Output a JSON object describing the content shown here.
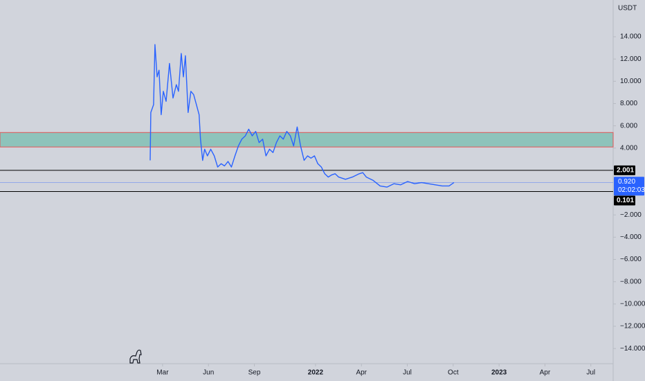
{
  "chart_data": {
    "type": "line",
    "axis_unit": "USDT",
    "x": [
      1.19,
      1.23,
      1.41,
      1.5,
      1.64,
      1.77,
      1.91,
      2.05,
      2.23,
      2.45,
      2.68,
      2.9,
      3.04,
      3.22,
      3.36,
      3.49,
      3.67,
      3.85,
      4.03,
      4.21,
      4.39,
      4.48,
      4.62,
      4.75,
      4.93,
      5.15,
      5.38,
      5.6,
      5.83,
      6.05,
      6.28,
      6.5,
      6.73,
      6.96,
      7.18,
      7.41,
      7.63,
      7.86,
      8.09,
      8.31,
      8.54,
      8.76,
      8.99,
      9.22,
      9.44,
      9.67,
      9.89,
      10.12,
      10.35,
      10.57,
      10.8,
      11.02,
      11.25,
      11.48,
      11.7,
      11.93,
      12.15,
      12.38,
      12.6,
      12.83,
      13.06,
      13.28,
      13.51,
      13.96,
      14.41,
      14.86,
      15.09,
      15.32,
      15.77,
      16.22,
      16.67,
      17.12,
      17.57,
      18.02,
      18.48,
      18.93,
      19.38,
      19.83,
      20.28,
      20.73,
      21.05
    ],
    "series": [
      {
        "color": "#2962ff",
        "values": [
          2.9,
          7.2,
          7.9,
          13.3,
          10.4,
          11,
          7,
          9.1,
          8.2,
          11.6,
          8.5,
          9.7,
          9.1,
          12.5,
          10.4,
          12.3,
          7.2,
          9.1,
          8.8,
          7.9,
          7,
          4.8,
          2.9,
          3.9,
          3.3,
          3.9,
          3.3,
          2.3,
          2.6,
          2.4,
          2.8,
          2.3,
          3.3,
          4.2,
          4.8,
          5.1,
          5.7,
          5.1,
          5.5,
          4.5,
          4.8,
          3.3,
          3.9,
          3.6,
          4.5,
          5.1,
          4.8,
          5.5,
          5.1,
          4.2,
          5.9,
          4.2,
          2.9,
          3.3,
          3.1,
          3.3,
          2.6,
          2.3,
          1.7,
          1.4,
          1.6,
          1.7,
          1.4,
          1.2,
          1.4,
          1.7,
          1.8,
          1.4,
          1.1,
          0.6,
          0.5,
          0.8,
          0.7,
          1.0,
          0.8,
          0.9,
          0.8,
          0.7,
          0.6,
          0.6,
          0.9
        ]
      }
    ],
    "xlim": [
      -8.63,
      31.46
    ],
    "xticks": [
      {
        "value": 2,
        "label": "Mar"
      },
      {
        "value": 5,
        "label": "Jun"
      },
      {
        "value": 8,
        "label": "Sep"
      },
      {
        "value": 12,
        "label": "2022"
      },
      {
        "value": 15,
        "label": "Apr"
      },
      {
        "value": 18,
        "label": "Jul"
      },
      {
        "value": 21,
        "label": "Oct"
      },
      {
        "value": 24,
        "label": "2023"
      },
      {
        "value": 27,
        "label": "Apr"
      },
      {
        "value": 30,
        "label": "Jul"
      }
    ],
    "ylim": [
      -15.36,
      17.3
    ],
    "yticks": [
      {
        "value": 14,
        "label": "14.000"
      },
      {
        "value": 12,
        "label": "12.000"
      },
      {
        "value": 10,
        "label": "10.000"
      },
      {
        "value": 8,
        "label": "8.000"
      },
      {
        "value": 6,
        "label": "6.000"
      },
      {
        "value": 4,
        "label": "4.000"
      },
      {
        "value": -2,
        "label": "−2.000"
      },
      {
        "value": -4,
        "label": "−4.000"
      },
      {
        "value": -6,
        "label": "−6.000"
      },
      {
        "value": -8,
        "label": "−8.000"
      },
      {
        "value": -10,
        "label": "−10.000"
      },
      {
        "value": -12,
        "label": "−12.000"
      },
      {
        "value": -14,
        "label": "−14.000"
      }
    ],
    "zone": {
      "from": 4.1,
      "to": 5.4,
      "color": "#8ec3bb",
      "border": "#e05555"
    },
    "horizontal_lines": [
      {
        "value": 2.001,
        "label": "2.001",
        "color": "#000000"
      },
      {
        "value": 0.101,
        "label": "0.101",
        "color": "#000000"
      }
    ],
    "current_price": {
      "value": 0.92,
      "label": "0.920",
      "countdown": "02:02:03",
      "color": "#2962ff"
    }
  }
}
